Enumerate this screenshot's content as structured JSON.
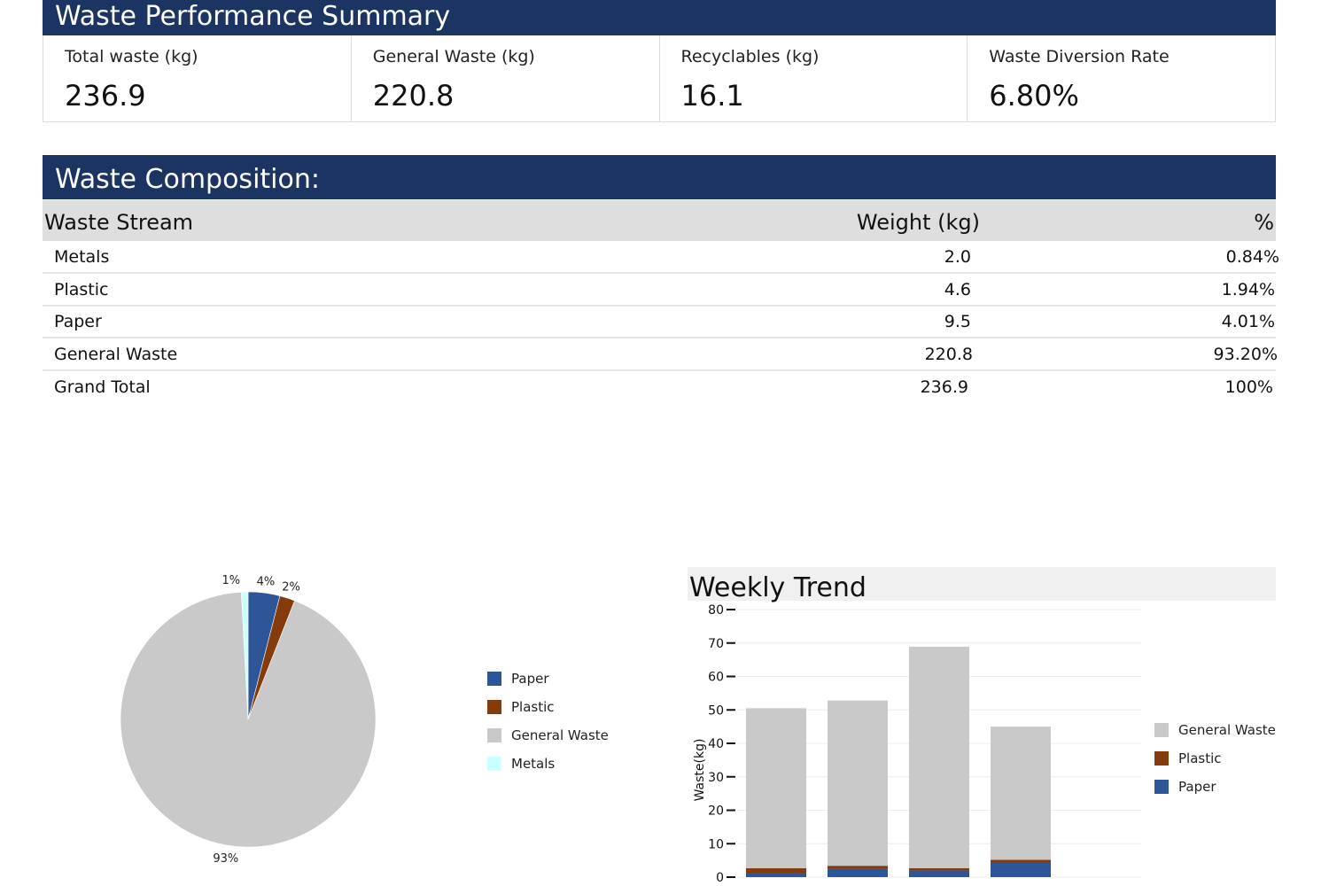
{
  "summary": {
    "title": "Waste Performance Summary",
    "kpis": [
      {
        "label": "Total waste (kg)",
        "value": "236.9"
      },
      {
        "label": "General Waste (kg)",
        "value": "220.8"
      },
      {
        "label": "Recyclables (kg)",
        "value": "16.1"
      },
      {
        "label": "Waste Diversion Rate",
        "value": "6.80%"
      }
    ]
  },
  "composition": {
    "title": "Waste Composition:",
    "headers": {
      "stream": "Waste Stream",
      "weight": "Weight (kg)",
      "pct": "%"
    },
    "rows": [
      {
        "stream": "Metals",
        "weight": "2.0",
        "pct": "0.84%"
      },
      {
        "stream": "Plastic",
        "weight": "4.6",
        "pct": "1.94%"
      },
      {
        "stream": "Paper",
        "weight": "9.5",
        "pct": "4.01%"
      },
      {
        "stream": "General Waste",
        "weight": "220.8",
        "pct": "93.20%"
      },
      {
        "stream": "Grand Total",
        "weight": "236.9",
        "pct": "100%"
      }
    ]
  },
  "colors": {
    "paper": "#2e5597",
    "plastic": "#843c0c",
    "general_waste": "#c9c9c9",
    "metals": "#ccffff"
  },
  "chart_data": [
    {
      "type": "pie",
      "title": "",
      "slices": [
        {
          "name": "Paper",
          "value": 9.5,
          "label": "4%",
          "color": "#2e5597"
        },
        {
          "name": "Plastic",
          "value": 4.6,
          "label": "2%",
          "color": "#843c0c"
        },
        {
          "name": "General Waste",
          "value": 220.8,
          "label": "93%",
          "color": "#c9c9c9"
        },
        {
          "name": "Metals",
          "value": 2.0,
          "label": "1%",
          "color": "#ccffff"
        }
      ],
      "legend": [
        "Paper",
        "Plastic",
        "General Waste",
        "Metals"
      ],
      "legend_position": "right"
    },
    {
      "type": "bar",
      "stacked": true,
      "title": "Weekly Trend",
      "ylabel": "Waste(kg)",
      "xlabel": "",
      "ylim": [
        0,
        80
      ],
      "yticks": [
        0,
        10,
        20,
        30,
        40,
        50,
        60,
        70,
        80
      ],
      "categories": [
        "",
        "",
        "",
        ""
      ],
      "series": [
        {
          "name": "Paper",
          "color": "#2e5597",
          "values": [
            1.2,
            2.5,
            2.0,
            4.5
          ]
        },
        {
          "name": "Plastic",
          "color": "#843c0c",
          "values": [
            1.5,
            0.9,
            0.7,
            0.7
          ]
        },
        {
          "name": "General Waste",
          "color": "#c9c9c9",
          "values": [
            47.8,
            49.4,
            66.2,
            39.8
          ]
        }
      ],
      "legend": [
        "General Waste",
        "Plastic",
        "Paper"
      ],
      "legend_position": "right",
      "grid": true
    }
  ]
}
